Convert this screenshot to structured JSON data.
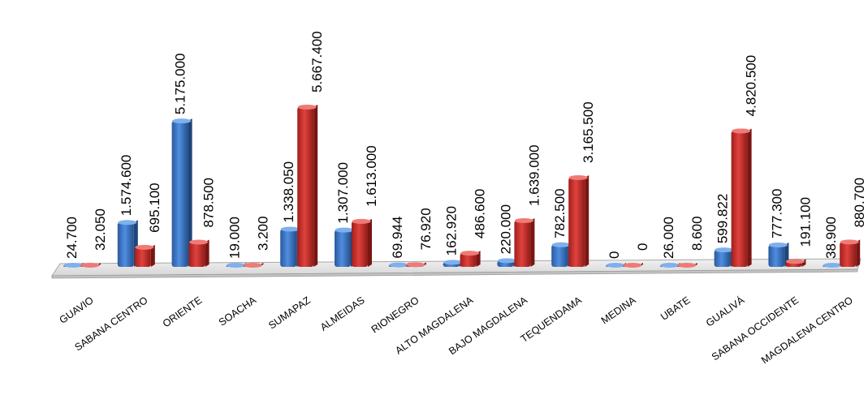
{
  "chart_data": {
    "type": "bar",
    "style": "3d-clustered-column",
    "categories": [
      "GUAVIO",
      "SABANA CENTRO",
      "ORIENTE",
      "SOACHA",
      "SUMAPAZ",
      "ALMEIDAS",
      "RIONEGRO",
      "ALTO MAGDALENA",
      "BAJO MAGDALENA",
      "TEQUENDAMA",
      "MEDINA",
      "UBATE",
      "GUALIVÁ",
      "SABANA OCCIDENTE",
      "MAGDALENA CENTRO"
    ],
    "series": [
      {
        "color": "#3a74c4",
        "values": [
          24700,
          1574600,
          5175000,
          19000,
          1338050,
          1307000,
          69944,
          162920,
          220000,
          782500,
          0,
          26000,
          599822,
          777300,
          38900
        ],
        "labels": [
          "24.700",
          "1.574.600",
          "5.175.000",
          "19.000",
          "1.338.050",
          "1.307.000",
          "69.944",
          "162.920",
          "220.000",
          "782.500",
          "0",
          "26.000",
          "599.822",
          "777.300",
          "38.900"
        ]
      },
      {
        "color": "#c9302c",
        "values": [
          32050,
          695100,
          878500,
          3200,
          5667400,
          1613000,
          76920,
          486600,
          1639000,
          3165500,
          0,
          8600,
          4820500,
          191100,
          880700
        ],
        "labels": [
          "32.050",
          "695.100",
          "878.500",
          "3.200",
          "5.667.400",
          "1.613.000",
          "76.920",
          "486.600",
          "1.639.000",
          "3.165.500",
          "0",
          "8.600",
          "4.820.500",
          "191.100",
          "880.700"
        ]
      }
    ],
    "xlabel": "",
    "ylabel": "",
    "ylim": [
      0,
      5667400
    ],
    "grid": false,
    "legend": "none"
  }
}
